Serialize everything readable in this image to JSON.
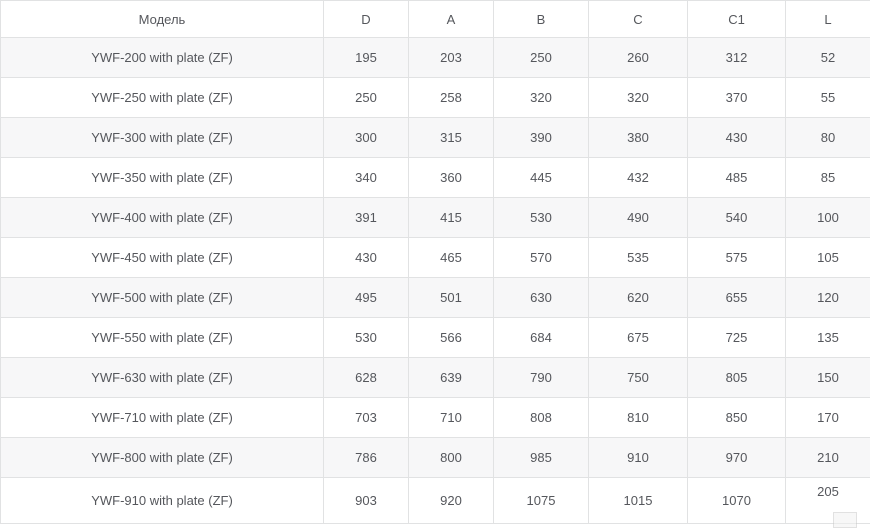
{
  "chart_data": {
    "type": "table",
    "title": "",
    "columns": [
      "Модель",
      "D",
      "A",
      "B",
      "C",
      "C1",
      "L"
    ],
    "rows": [
      [
        "YWF-200 with plate (ZF)",
        195,
        203,
        250,
        260,
        312,
        52
      ],
      [
        "YWF-250 with plate (ZF)",
        250,
        258,
        320,
        320,
        370,
        55
      ],
      [
        "YWF-300 with plate (ZF)",
        300,
        315,
        390,
        380,
        430,
        80
      ],
      [
        "YWF-350 with plate (ZF)",
        340,
        360,
        445,
        432,
        485,
        85
      ],
      [
        "YWF-400 with plate (ZF)",
        391,
        415,
        530,
        490,
        540,
        100
      ],
      [
        "YWF-450 with plate (ZF)",
        430,
        465,
        570,
        535,
        575,
        105
      ],
      [
        "YWF-500 with plate (ZF)",
        495,
        501,
        630,
        620,
        655,
        120
      ],
      [
        "YWF-550 with plate (ZF)",
        530,
        566,
        684,
        675,
        725,
        135
      ],
      [
        "YWF-630 with plate (ZF)",
        628,
        639,
        790,
        750,
        805,
        150
      ],
      [
        "YWF-710 with plate (ZF)",
        703,
        710,
        808,
        810,
        850,
        170
      ],
      [
        "YWF-800 with plate (ZF)",
        786,
        800,
        985,
        910,
        970,
        210
      ],
      [
        "YWF-910 with plate (ZF)",
        903,
        920,
        1075,
        1015,
        1070,
        205
      ]
    ],
    "layout": {
      "striped_rows": "odd data rows shaded",
      "alignment": "center",
      "grid": true
    }
  },
  "colors": {
    "row_stripe": "#f7f7f8",
    "border": "#e1e2e3",
    "text": "#55575c",
    "background": "#ffffff"
  }
}
